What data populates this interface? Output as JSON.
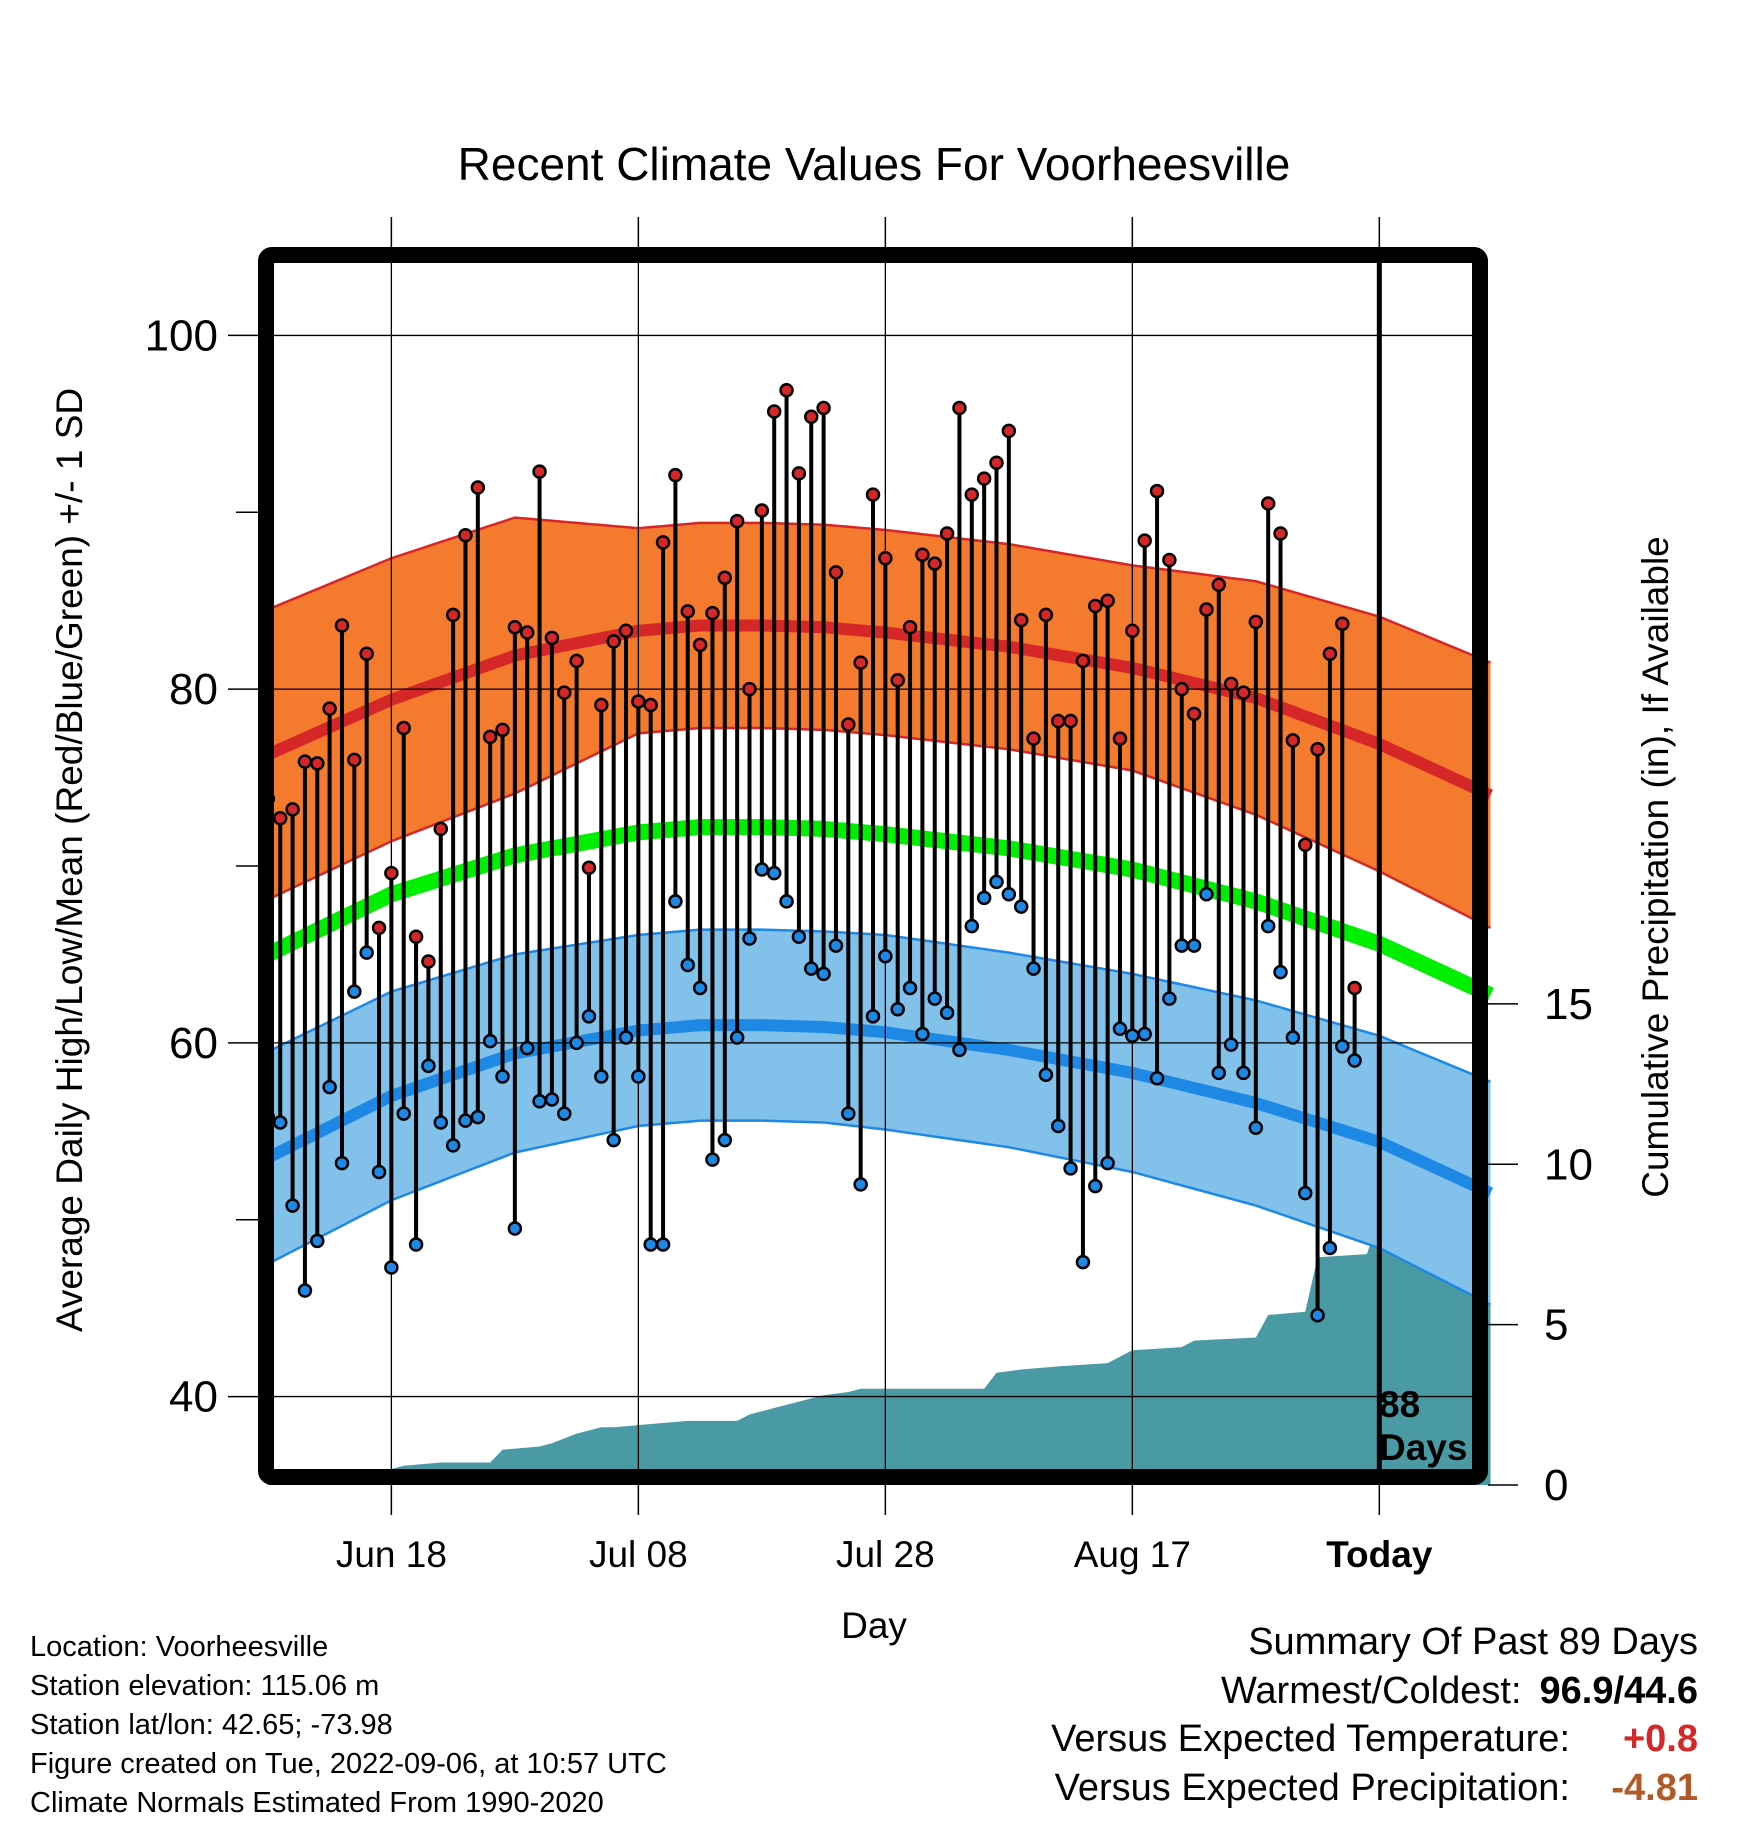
{
  "title": "Recent Climate Values For Voorheesville",
  "xlabel": "Day",
  "ylabel_left": "Average Daily High/Low/Mean (Red/Blue/Green) +/- 1 SD",
  "ylabel_right": "Cumulative Precipitation (in), If Available",
  "days_marker": {
    "line1": "88",
    "line2": "Days"
  },
  "colors": {
    "orange_band": "#f47a2e",
    "red_line": "#d62728",
    "blue_band": "#82c2ea",
    "blue_line": "#1e88e5",
    "green_line": "#00ee00",
    "precip_fill": "#4a9aa5",
    "high_dot": "#d62728",
    "low_dot": "#1e88e5",
    "positive_anomaly": "#d62728",
    "negative_anomaly": "#b05a28"
  },
  "chart_data": {
    "type": "line",
    "x_start": "Jun 08",
    "x_tick_labels": [
      "Jun 18",
      "Jul 08",
      "Jul 28",
      "Aug 17",
      "Today"
    ],
    "x_tick_days": [
      10,
      30,
      50,
      70,
      90
    ],
    "xlim": [
      -0.8,
      98.8
    ],
    "ylim_left": [
      35,
      105
    ],
    "left_tick_labels": [
      "40",
      "60",
      "80",
      "100"
    ],
    "left_tick_values": [
      40,
      50,
      60,
      70,
      80,
      90,
      100
    ],
    "ylim_right": [
      0,
      38.6
    ],
    "right_tick_labels": [
      "0",
      "5",
      "10",
      "15"
    ],
    "right_tick_values": [
      0,
      5,
      10,
      15
    ],
    "grid": true,
    "normals": {
      "days": [
        0,
        10,
        20,
        30,
        35,
        40,
        45,
        50,
        60,
        70,
        80,
        90,
        99
      ],
      "high_mean": [
        76.3,
        79.4,
        81.9,
        83.3,
        83.6,
        83.6,
        83.5,
        83.2,
        82.4,
        81.2,
        79.5,
        76.9,
        74.0
      ],
      "high_sd": [
        8.2,
        8.0,
        7.8,
        5.8,
        5.8,
        5.8,
        5.8,
        5.8,
        5.8,
        5.8,
        6.6,
        7.2,
        7.5
      ],
      "low_mean": [
        53.5,
        57.0,
        59.4,
        60.7,
        61.0,
        61.0,
        60.9,
        60.6,
        59.6,
        58.3,
        56.6,
        54.4,
        51.5
      ],
      "low_sd": [
        6.0,
        5.9,
        5.6,
        5.4,
        5.4,
        5.4,
        5.4,
        5.5,
        5.5,
        5.6,
        5.8,
        6.0,
        6.3
      ],
      "mean": [
        65.0,
        68.4,
        70.6,
        71.9,
        72.2,
        72.2,
        72.1,
        71.8,
        71.0,
        69.8,
        68.0,
        65.6,
        62.7
      ]
    },
    "daily": {
      "start_day": 0,
      "highs": [
        73.8,
        72.7,
        73.2,
        75.9,
        75.8,
        78.9,
        83.6,
        76.0,
        82.0,
        66.5,
        69.6,
        77.8,
        66.0,
        64.6,
        72.1,
        84.2,
        88.7,
        91.4,
        77.3,
        77.7,
        83.5,
        83.2,
        92.3,
        82.9,
        79.8,
        81.6,
        69.9,
        79.1,
        82.7,
        83.3,
        79.3,
        79.1,
        88.3,
        92.1,
        84.4,
        82.5,
        84.3,
        86.3,
        89.5,
        80.0,
        90.1,
        95.7,
        96.9,
        92.2,
        95.4,
        95.9,
        86.6,
        78.0,
        81.5,
        91.0,
        87.4,
        80.5,
        83.5,
        87.6,
        87.1,
        88.8,
        95.9,
        91.0,
        91.9,
        92.8,
        94.6,
        83.9,
        77.2,
        84.2,
        78.2,
        78.2,
        81.6,
        84.7,
        85.0,
        77.2,
        83.3,
        88.4,
        91.2,
        87.3,
        80.0,
        78.6,
        84.5,
        85.9,
        80.3,
        79.8,
        83.8,
        90.5,
        88.8,
        77.1,
        71.2,
        76.6,
        82.0,
        83.7,
        63.1
      ],
      "lows": [
        55.8,
        55.5,
        50.8,
        46.0,
        48.8,
        57.5,
        53.2,
        62.9,
        65.1,
        52.7,
        47.3,
        56.0,
        48.6,
        58.7,
        55.5,
        54.2,
        55.6,
        55.8,
        60.1,
        58.1,
        49.5,
        59.7,
        56.7,
        56.8,
        56.0,
        60.0,
        61.5,
        58.1,
        54.5,
        60.3,
        58.1,
        48.6,
        48.6,
        68.0,
        64.4,
        63.1,
        53.4,
        54.5,
        60.3,
        65.9,
        69.8,
        69.6,
        68.0,
        66.0,
        64.2,
        63.9,
        65.5,
        56.0,
        52.0,
        61.5,
        64.9,
        61.9,
        63.1,
        60.5,
        62.5,
        61.7,
        59.6,
        66.6,
        68.2,
        69.1,
        68.4,
        67.7,
        64.2,
        58.2,
        55.3,
        52.9,
        47.6,
        51.9,
        53.2,
        60.8,
        60.4,
        60.5,
        58.0,
        62.5,
        65.5,
        65.5,
        68.4,
        58.3,
        59.9,
        58.3,
        55.2,
        66.6,
        64.0,
        60.3,
        51.5,
        44.6,
        48.4,
        59.8,
        59.0
      ]
    },
    "precip_cumulative": {
      "days": [
        0,
        1,
        10,
        11,
        14,
        18,
        19,
        22,
        23,
        25,
        27,
        28,
        34,
        38,
        39,
        41,
        45,
        47,
        48,
        53,
        58,
        59,
        61,
        64,
        68,
        70,
        74,
        75,
        80,
        81,
        84,
        85,
        89,
        90,
        99
      ],
      "values": [
        0,
        0.5,
        0.5,
        0.6,
        0.7,
        0.7,
        1.1,
        1.2,
        1.3,
        1.6,
        1.8,
        1.8,
        2.0,
        2.0,
        2.2,
        2.4,
        2.8,
        2.9,
        3.0,
        3.0,
        3.0,
        3.5,
        3.6,
        3.7,
        3.8,
        4.2,
        4.3,
        4.5,
        4.6,
        5.3,
        5.4,
        7.1,
        7.2,
        8.4,
        8.4
      ]
    }
  },
  "meta": {
    "location": "Location: Voorheesville",
    "elevation": "Station elevation: 115.06 m",
    "latlon": "Station lat/lon: 42.65; -73.98",
    "created": "Figure created on Tue, 2022-09-06, at 10:57 UTC",
    "normals": "Climate Normals Estimated From 1990-2020"
  },
  "summary": {
    "title": "Summary Of Past 89 Days",
    "warmest_label": "Warmest/Coldest:",
    "warmest_value": "96.9/44.6",
    "temp_label": "Versus Expected Temperature:",
    "temp_value": "+0.8",
    "precip_label": "Versus Expected Precipitation:",
    "precip_value": "-4.81"
  }
}
